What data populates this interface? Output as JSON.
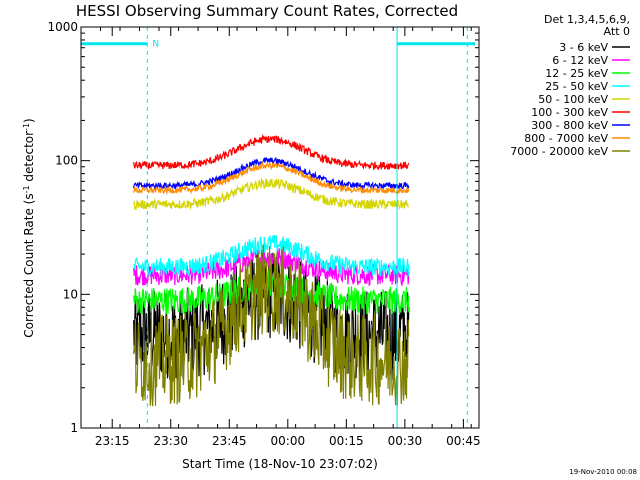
{
  "chart_data": {
    "type": "line",
    "title": "HESSI Observing Summary Count Rates, Corrected",
    "xlabel": "Start Time (18-Nov-10 23:07:02)",
    "ylabel_main": "Corrected Count Rate (s",
    "ylabel_sup1": "-1",
    "ylabel_mid": " detector",
    "ylabel_sup2": "-1",
    "ylabel_end": ")",
    "y_scale": "log",
    "ylim": [
      1,
      1000
    ],
    "y_ticks": [
      {
        "value": 1,
        "label": "1"
      },
      {
        "value": 10,
        "label": "10"
      },
      {
        "value": 100,
        "label": "100"
      },
      {
        "value": 1000,
        "label": "1000"
      }
    ],
    "xlim_minutes": [
      0,
      102
    ],
    "x_ticks": [
      {
        "minute": 8,
        "label": "23:15"
      },
      {
        "minute": 23,
        "label": "23:30"
      },
      {
        "minute": 38,
        "label": "23:45"
      },
      {
        "minute": 53,
        "label": "00:00"
      },
      {
        "minute": 68,
        "label": "00:15"
      },
      {
        "minute": 83,
        "label": "00:30"
      },
      {
        "minute": 98,
        "label": "00:45"
      }
    ],
    "legend_placement": "right",
    "legend_header": [
      "Det 1,3,4,5,6,9,",
      "Att 0"
    ],
    "timestamp": "19-Nov-2010 00:08",
    "night_marker_label": "N",
    "data_start_minute": 13.5,
    "data_end_minute": 84,
    "peak_minute": 48.5,
    "night_bars": [
      {
        "start_minute": 0,
        "end_minute": 17
      },
      {
        "start_minute": 81,
        "end_minute": 101
      }
    ],
    "solid_markers_minute": [
      0,
      81
    ],
    "dashed_markers_minute": [
      17,
      99
    ],
    "series": [
      {
        "name": "3 - 6 keV",
        "color": "#000000",
        "base": 5,
        "peak": 10,
        "noise": 0.3
      },
      {
        "name": "6 - 12 keV",
        "color": "#ff00ff",
        "base": 14,
        "peak": 19,
        "noise": 0.07
      },
      {
        "name": "12 - 25 keV",
        "color": "#00ff00",
        "base": 9,
        "peak": 12,
        "noise": 0.09
      },
      {
        "name": "25 - 50 keV",
        "color": "#00ffff",
        "base": 16,
        "peak": 24,
        "noise": 0.06
      },
      {
        "name": "50 - 100 keV",
        "color": "#d4d400",
        "base": 47,
        "peak": 68,
        "noise": 0.03
      },
      {
        "name": "100 - 300 keV",
        "color": "#ff0000",
        "base": 92,
        "peak": 145,
        "noise": 0.025
      },
      {
        "name": "300 - 800 keV",
        "color": "#0000ff",
        "base": 65,
        "peak": 100,
        "noise": 0.02
      },
      {
        "name": "800 - 7000 keV",
        "color": "#ff8c00",
        "base": 60,
        "peak": 92,
        "noise": 0.02
      },
      {
        "name": "7000 - 20000 keV",
        "color": "#808000",
        "base": 3.2,
        "peak": 11,
        "noise": 0.3
      }
    ]
  }
}
